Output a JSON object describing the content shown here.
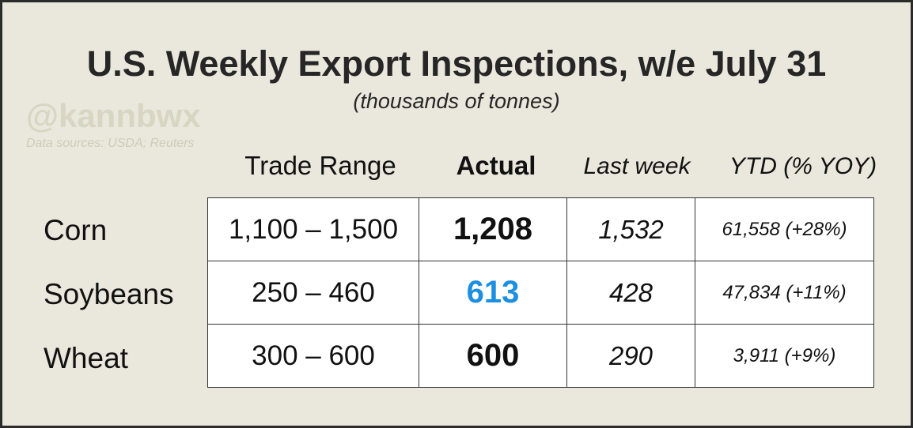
{
  "header": {
    "title": "U.S. Weekly Export Inspections, w/e July 31",
    "subtitle": "(thousands of tonnes)",
    "watermark": "@kannbwx",
    "sources": "Data sources: USDA; Reuters"
  },
  "table": {
    "columns": [
      "Trade Range",
      "Actual",
      "Last week",
      "YTD (% YOY)"
    ],
    "rows": [
      [
        "Corn",
        "1,100 – 1,500",
        "1,208",
        "1,532",
        "61,558 (+28%)"
      ],
      [
        "Soybeans",
        "250 – 460",
        "613",
        "428",
        "47,834 (+11%)"
      ],
      [
        "Wheat",
        "300 – 600",
        "600",
        "290",
        "3,911 (+9%)"
      ]
    ]
  }
}
